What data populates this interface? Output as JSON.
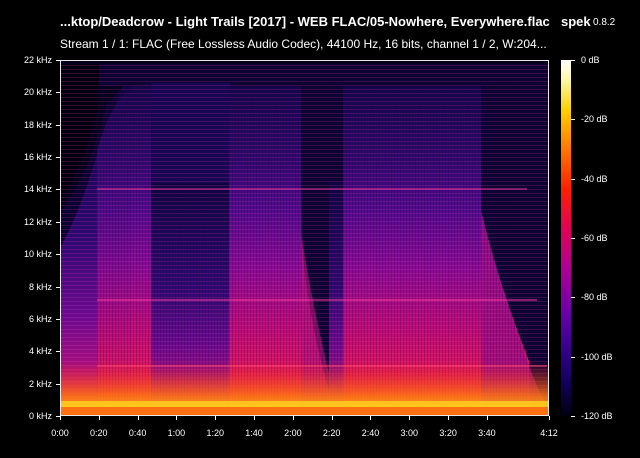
{
  "title": "...ktop/Deadcrow - Light Trails [2017] - WEB FLAC/05-Nowhere, Everywhere.flac",
  "app": {
    "name": "spek",
    "version": "0.8.2"
  },
  "stream_info": "Stream 1 / 1: FLAC (Free Lossless Audio Codec), 44100 Hz, 16 bits, channel 1 / 2, W:204...",
  "frequency_axis": {
    "max_khz": 22,
    "ticks": [
      "22 kHz",
      "20 kHz",
      "18 kHz",
      "16 kHz",
      "14 kHz",
      "12 kHz",
      "10 kHz",
      "8 kHz",
      "6 kHz",
      "4 kHz",
      "2 kHz",
      "0 kHz"
    ]
  },
  "time_axis": {
    "duration_seconds": 252,
    "ticks": [
      {
        "label": "0:00",
        "seconds": 0
      },
      {
        "label": "0:20",
        "seconds": 20
      },
      {
        "label": "0:40",
        "seconds": 40
      },
      {
        "label": "1:00",
        "seconds": 60
      },
      {
        "label": "1:20",
        "seconds": 80
      },
      {
        "label": "1:40",
        "seconds": 100
      },
      {
        "label": "2:00",
        "seconds": 120
      },
      {
        "label": "2:20",
        "seconds": 140
      },
      {
        "label": "2:40",
        "seconds": 160
      },
      {
        "label": "3:00",
        "seconds": 180
      },
      {
        "label": "3:20",
        "seconds": 200
      },
      {
        "label": "3:40",
        "seconds": 220
      },
      {
        "label": "4:12",
        "seconds": 252
      }
    ]
  },
  "colorbar": {
    "min_db": -120,
    "max_db": 0,
    "ticks": [
      {
        "label": "0 dB",
        "db": 0
      },
      {
        "label": "-20 dB",
        "db": -20
      },
      {
        "label": "-40 dB",
        "db": -40
      },
      {
        "label": "-60 dB",
        "db": -60
      },
      {
        "label": "-80 dB",
        "db": -80
      },
      {
        "label": "-100 dB",
        "db": -100
      },
      {
        "label": "-120 dB",
        "db": -120
      }
    ]
  },
  "colors": {
    "background": "#000000",
    "text": "#ffffff",
    "plot_border": "#e8e8e8"
  }
}
